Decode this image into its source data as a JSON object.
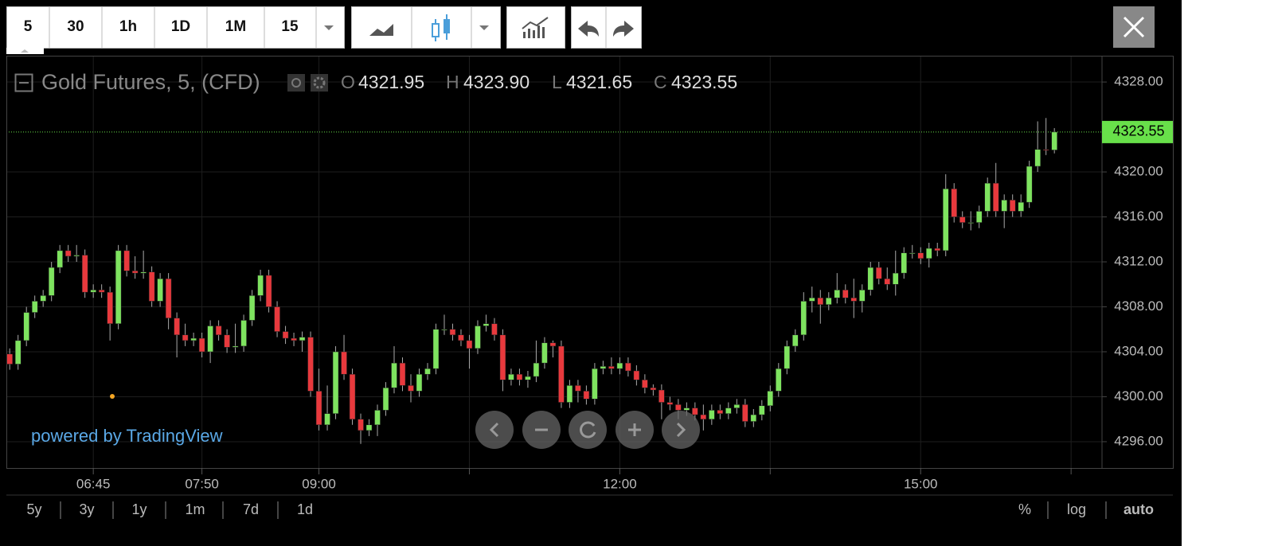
{
  "toolbar": {
    "intervals": [
      "5",
      "30",
      "1h",
      "1D",
      "1M",
      "15"
    ]
  },
  "chart_data": {
    "type": "candlestick",
    "title": "Gold Futures, 5, (CFD)",
    "legend": {
      "open_label": "O",
      "open": "4321.95",
      "high_label": "H",
      "high": "4323.90",
      "low_label": "L",
      "low": "4321.65",
      "close_label": "C",
      "close": "4323.55"
    },
    "watermark": "powered by TradingView",
    "up_color": "#7ee35f",
    "down_color": "#e8393d",
    "last_price_color": "#68e04a",
    "grid": true,
    "xlim": [
      -0.4,
      130.7
    ],
    "xticks": [
      {
        "value": 10,
        "label": "06:45"
      },
      {
        "value": 23,
        "label": "07:50"
      },
      {
        "value": 37,
        "label": "09:00"
      },
      {
        "value": 73,
        "label": "12:00"
      },
      {
        "value": 109,
        "label": "15:00"
      }
    ],
    "xticks_minor": [
      55,
      91,
      127
    ],
    "ylim": [
      4293.66,
      4330.34
    ],
    "yticks": [
      {
        "value": 4296,
        "label": "4296.00"
      },
      {
        "value": 4300,
        "label": "4300.00"
      },
      {
        "value": 4304,
        "label": "4304.00"
      },
      {
        "value": 4308,
        "label": "4308.00"
      },
      {
        "value": 4312,
        "label": "4312.00"
      },
      {
        "value": 4316,
        "label": "4316.00"
      },
      {
        "value": 4320,
        "label": "4320.00"
      },
      {
        "value": 4328,
        "label": "4328.00"
      }
    ],
    "open": [
      4303.8,
      4302.9,
      4305.0,
      4307.5,
      4308.5,
      4309.0,
      4311.5,
      4313.0,
      4312.5,
      4312.6,
      4309.3,
      4309.5,
      4309.3,
      4306.5,
      4313.0,
      4311.2,
      4311.0,
      4311.1,
      4308.5,
      4310.5,
      4307.0,
      4305.5,
      4305.0,
      4305.2,
      4304.0,
      4306.3,
      4305.5,
      4304.4,
      4304.5,
      4306.8,
      4309.0,
      4310.8,
      4308.0,
      4305.8,
      4305.2,
      4305.0,
      4305.3,
      4300.5,
      4297.5,
      4298.5,
      4304.0,
      4302.0,
      4298.0,
      4297.0,
      4297.5,
      4298.8,
      4300.8,
      4303.0,
      4301.0,
      4300.5,
      4302.0,
      4302.5,
      4306.0,
      4306.0,
      4305.5,
      4305.0,
      4304.3,
      4306.3,
      4306.5,
      4305.5,
      4301.5,
      4302.0,
      4301.5,
      4301.8,
      4303.0,
      4304.8,
      4304.5,
      4299.5,
      4301.0,
      4300.5,
      4299.8,
      4302.5,
      4302.7,
      4302.5,
      4303.0,
      4302.3,
      4301.5,
      4300.8,
      4300.6,
      4299.5,
      4299.3,
      4298.8,
      4299.0,
      4298.4,
      4298.0,
      4298.8,
      4298.5,
      4299.0,
      4299.3,
      4297.8,
      4298.4,
      4299.2,
      4300.5,
      4302.5,
      4304.5,
      4305.5,
      4308.5,
      4308.8,
      4308.2,
      4308.8,
      4309.5,
      4308.8,
      4308.5,
      4309.5,
      4311.5,
      4310.5,
      4310.0,
      4311.0,
      4312.8,
      4312.8,
      4312.3,
      4313.2,
      4313.0,
      4318.5,
      4316.0,
      4315.5,
      4315.5,
      4316.5,
      4319.0,
      4316.5,
      4317.5,
      4316.5,
      4317.3,
      4320.5,
      4322.0,
      4321.95
    ],
    "high": [
      4304.3,
      4305.5,
      4308.0,
      4309.0,
      4309.5,
      4312.0,
      4313.5,
      4313.5,
      4313.5,
      4313.1,
      4310.0,
      4310.0,
      4309.8,
      4313.5,
      4313.5,
      4312.5,
      4313.0,
      4311.6,
      4311.0,
      4311.0,
      4307.5,
      4306.5,
      4305.7,
      4305.7,
      4306.8,
      4306.8,
      4306.0,
      4306.5,
      4307.3,
      4309.5,
      4311.3,
      4311.3,
      4308.5,
      4306.3,
      4305.7,
      4305.8,
      4305.8,
      4302.5,
      4301.0,
      4304.5,
      4305.5,
      4302.5,
      4298.5,
      4298.0,
      4299.3,
      4301.3,
      4304.5,
      4303.5,
      4302.0,
      4302.5,
      4303.0,
      4306.5,
      4307.3,
      4306.5,
      4306.0,
      4305.5,
      4306.8,
      4307.3,
      4307.0,
      4306.0,
      4302.5,
      4302.5,
      4302.3,
      4305.0,
      4305.3,
      4305.0,
      4305.0,
      4301.5,
      4301.5,
      4301.0,
      4303.0,
      4303.2,
      4303.5,
      4303.5,
      4303.5,
      4302.8,
      4302.0,
      4301.1,
      4301.1,
      4300.0,
      4299.8,
      4299.5,
      4299.5,
      4299.3,
      4299.3,
      4299.3,
      4299.5,
      4299.8,
      4299.8,
      4298.9,
      4299.7,
      4301.0,
      4303.0,
      4305.0,
      4306.0,
      4309.3,
      4309.8,
      4309.5,
      4309.3,
      4311.0,
      4310.0,
      4310.5,
      4310.0,
      4312.0,
      4312.0,
      4311.5,
      4313.0,
      4313.3,
      4313.5,
      4313.3,
      4313.7,
      4313.7,
      4319.8,
      4319.0,
      4316.5,
      4316.5,
      4317.0,
      4319.5,
      4320.8,
      4318.0,
      4318.0,
      4318.0,
      4321.0,
      4324.5,
      4324.8,
      4323.9
    ],
    "low": [
      4302.4,
      4302.4,
      4304.5,
      4307.0,
      4308.0,
      4308.5,
      4311.0,
      4312.0,
      4312.0,
      4308.8,
      4308.8,
      4308.8,
      4305.0,
      4306.0,
      4310.7,
      4310.5,
      4310.5,
      4308.0,
      4308.0,
      4306.0,
      4303.5,
      4304.5,
      4304.5,
      4303.5,
      4303.0,
      4305.0,
      4303.9,
      4303.9,
      4304.0,
      4306.3,
      4308.5,
      4307.5,
      4305.3,
      4304.7,
      4304.5,
      4304.0,
      4300.0,
      4297.0,
      4297.0,
      4298.0,
      4301.5,
      4297.5,
      4295.8,
      4296.5,
      4296.5,
      4298.3,
      4300.3,
      4300.5,
      4299.5,
      4300.0,
      4301.5,
      4302.0,
      4305.5,
      4305.0,
      4304.5,
      4302.5,
      4303.8,
      4305.8,
      4305.0,
      4300.5,
      4301.0,
      4301.0,
      4300.8,
      4301.3,
      4302.5,
      4303.5,
      4299.0,
      4299.0,
      4299.5,
      4299.3,
      4299.3,
      4302.0,
      4302.0,
      4302.0,
      4301.8,
      4301.0,
      4300.3,
      4300.1,
      4298.0,
      4298.8,
      4298.0,
      4298.3,
      4297.9,
      4297.0,
      4297.5,
      4298.0,
      4298.0,
      4298.5,
      4297.3,
      4297.3,
      4297.9,
      4298.7,
      4300.0,
      4302.0,
      4304.0,
      4305.0,
      4307.5,
      4306.5,
      4307.7,
      4308.3,
      4308.3,
      4307.0,
      4307.5,
      4309.0,
      4310.0,
      4309.5,
      4309.0,
      4310.5,
      4312.3,
      4311.8,
      4311.5,
      4312.5,
      4312.5,
      4315.5,
      4315.0,
      4314.8,
      4315.0,
      4316.0,
      4316.0,
      4315.0,
      4316.0,
      4316.0,
      4316.8,
      4320.0,
      4321.5,
      4321.65
    ],
    "close": [
      4302.9,
      4305.0,
      4307.5,
      4308.5,
      4309.0,
      4311.5,
      4313.0,
      4312.5,
      4312.6,
      4309.3,
      4309.5,
      4309.3,
      4306.5,
      4313.0,
      4311.2,
      4311.0,
      4311.1,
      4308.5,
      4310.5,
      4307.0,
      4305.5,
      4305.0,
      4305.2,
      4304.0,
      4306.3,
      4305.5,
      4304.4,
      4304.5,
      4306.8,
      4309.0,
      4310.8,
      4308.0,
      4305.8,
      4305.2,
      4305.0,
      4305.3,
      4300.5,
      4297.5,
      4298.5,
      4304.0,
      4302.0,
      4298.0,
      4297.0,
      4297.5,
      4298.8,
      4300.8,
      4303.0,
      4301.0,
      4300.5,
      4302.0,
      4302.5,
      4306.0,
      4306.0,
      4305.5,
      4305.0,
      4304.3,
      4306.3,
      4306.5,
      4305.5,
      4301.5,
      4302.0,
      4301.5,
      4301.8,
      4303.0,
      4304.8,
      4304.5,
      4299.5,
      4301.0,
      4300.5,
      4299.8,
      4302.5,
      4302.7,
      4302.5,
      4303.0,
      4302.3,
      4301.5,
      4300.8,
      4300.6,
      4299.5,
      4299.3,
      4298.8,
      4299.0,
      4298.4,
      4298.0,
      4298.8,
      4298.5,
      4299.0,
      4299.3,
      4297.8,
      4298.4,
      4299.2,
      4300.5,
      4302.5,
      4304.5,
      4305.5,
      4308.5,
      4308.8,
      4308.2,
      4308.8,
      4309.5,
      4308.8,
      4308.5,
      4309.5,
      4311.5,
      4310.5,
      4310.0,
      4311.0,
      4312.8,
      4312.8,
      4312.3,
      4313.2,
      4313.0,
      4318.5,
      4316.0,
      4315.5,
      4315.5,
      4316.5,
      4319.0,
      4316.5,
      4317.5,
      4316.5,
      4317.3,
      4320.5,
      4322.0,
      4321.95,
      4323.55
    ]
  },
  "footer": {
    "ranges": [
      "5y",
      "3y",
      "1y",
      "1m",
      "7d",
      "1d"
    ],
    "scale_modes": [
      "%",
      "log",
      "auto"
    ]
  }
}
